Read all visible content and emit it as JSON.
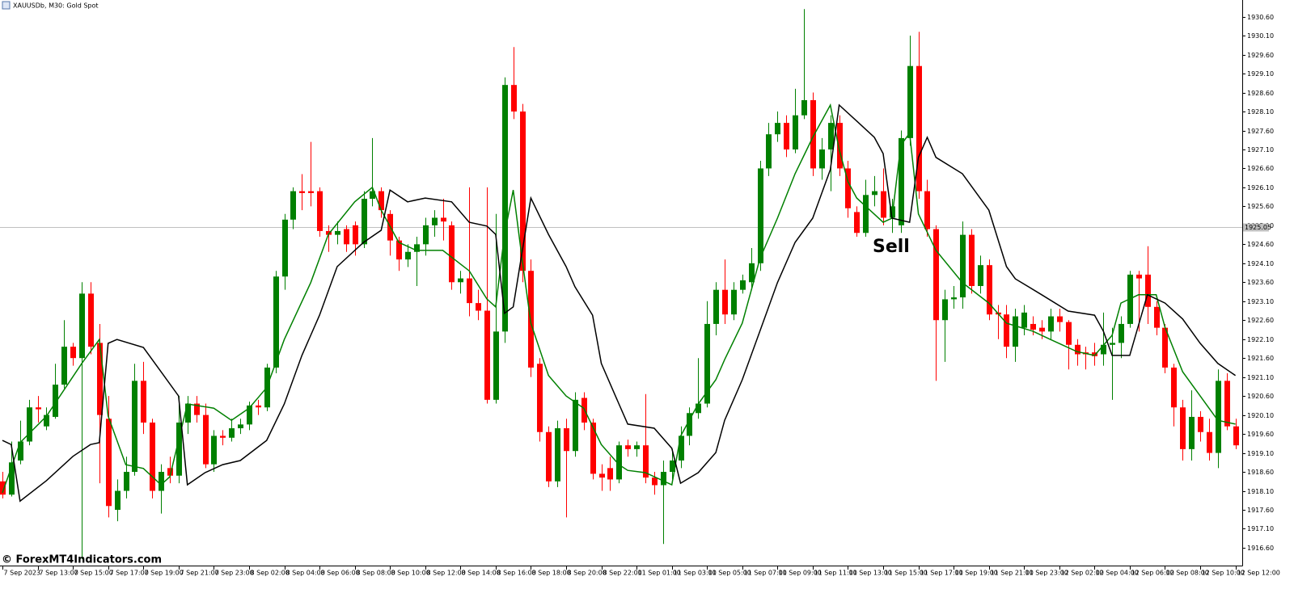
{
  "chart_data": {
    "type": "candlestick",
    "title": "XAUUSDb, M30:  Gold Spot",
    "annotation": "Sell",
    "watermark": "© ForexMT4Indicators.com",
    "up_color": "#008000",
    "down_color": "#ff0000",
    "xlim": [
      -0.28,
      140.68
    ],
    "ylim": [
      1916.13,
      1931.04
    ],
    "price_line": {
      "value": 1925.05,
      "label": "1925.05"
    },
    "open": [
      1918.35,
      1918.0,
      1918.9,
      1919.4,
      1920.3,
      1919.8,
      1920.05,
      1920.9,
      1921.9,
      1921.6,
      1923.3,
      1922.0,
      1920.0,
      1917.6,
      1918.1,
      1918.6,
      1921.0,
      1919.9,
      1918.1,
      1918.7,
      1918.5,
      1919.9,
      1920.4,
      1920.1,
      1918.8,
      1919.55,
      1919.5,
      1919.75,
      1919.85,
      1920.35,
      1920.3,
      1921.35,
      1923.75,
      1925.25,
      1926.0,
      1926.0,
      1926.0,
      1924.95,
      1924.85,
      1925.0,
      1925.1,
      1924.6,
      1925.8,
      1926.0,
      1925.4,
      1924.7,
      1924.2,
      1924.4,
      1924.6,
      1925.1,
      1925.3,
      1925.1,
      1923.6,
      1923.7,
      1923.05,
      1922.85,
      1920.5,
      1922.3,
      1928.8,
      1928.1,
      1923.9,
      1921.45,
      1919.65,
      1918.35,
      1919.75,
      1919.15,
      1920.55,
      1919.9,
      1918.55,
      1918.7,
      1918.4,
      1919.3,
      1919.2,
      1919.3,
      1918.45,
      1918.25,
      1918.6,
      1918.9,
      1919.55,
      1920.15,
      1920.4,
      1922.5,
      1923.4,
      1922.75,
      1923.4,
      1923.6,
      1924.1,
      1926.6,
      1927.5,
      1927.8,
      1927.1,
      1928.0,
      1928.4,
      1926.6,
      1927.1,
      1927.8,
      1926.6,
      1925.45,
      1924.9,
      1925.9,
      1926.0,
      1925.3,
      1925.1,
      1927.4,
      1929.3,
      1926.0,
      1925.0,
      1922.6,
      1923.15,
      1923.2,
      1924.85,
      1923.5,
      1924.05,
      1922.8,
      1922.75,
      1921.9,
      1922.4,
      1922.5,
      1922.4,
      1922.3,
      1922.7,
      1922.55,
      1921.95,
      1921.75,
      1921.75,
      1921.7,
      1921.95,
      1922.0,
      1922.5,
      1923.8,
      1923.8,
      1922.95,
      1922.4,
      1921.35,
      1920.3,
      1919.2,
      1920.05,
      1919.65,
      1919.1,
      1921.0,
      1919.8
    ],
    "high": [
      1918.6,
      1919.4,
      1919.95,
      1920.5,
      1920.6,
      1920.3,
      1921.45,
      1922.6,
      1922.0,
      1923.6,
      1923.6,
      1922.5,
      1920.6,
      1918.4,
      1919.0,
      1921.45,
      1921.5,
      1920.0,
      1918.8,
      1919.0,
      1920.6,
      1920.6,
      1920.6,
      1920.4,
      1919.7,
      1919.7,
      1920.0,
      1920.0,
      1920.45,
      1920.5,
      1921.45,
      1923.9,
      1925.4,
      1926.1,
      1926.45,
      1927.3,
      1926.1,
      1925.1,
      1925.2,
      1925.1,
      1925.2,
      1926.0,
      1927.4,
      1926.1,
      1925.5,
      1924.8,
      1924.6,
      1924.8,
      1925.3,
      1925.5,
      1925.8,
      1925.2,
      1923.9,
      1926.1,
      1923.4,
      1926.1,
      1925.4,
      1929.0,
      1929.8,
      1928.3,
      1924.2,
      1921.6,
      1919.8,
      1919.95,
      1920.0,
      1920.7,
      1920.7,
      1920.0,
      1918.8,
      1919.0,
      1919.4,
      1919.45,
      1919.4,
      1920.65,
      1918.6,
      1918.9,
      1919.2,
      1919.8,
      1920.3,
      1921.6,
      1923.1,
      1923.6,
      1924.2,
      1923.6,
      1923.8,
      1924.5,
      1926.8,
      1927.8,
      1928.1,
      1928.0,
      1928.7,
      1930.8,
      1928.6,
      1927.4,
      1928.0,
      1928.0,
      1926.8,
      1925.6,
      1926.3,
      1926.4,
      1926.6,
      1925.8,
      1927.6,
      1930.1,
      1930.2,
      1926.3,
      1925.1,
      1923.4,
      1923.5,
      1925.2,
      1925.0,
      1924.3,
      1924.2,
      1923.0,
      1923.0,
      1922.9,
      1923.0,
      1922.7,
      1922.6,
      1922.9,
      1922.9,
      1922.6,
      1922.1,
      1921.9,
      1922.0,
      1922.8,
      1922.4,
      1922.7,
      1923.9,
      1923.9,
      1924.55,
      1923.1,
      1922.5,
      1921.45,
      1920.5,
      1920.75,
      1920.2,
      1920.0,
      1921.3,
      1921.2,
      1920.0
    ],
    "low": [
      1917.9,
      1917.95,
      1918.8,
      1919.3,
      1919.9,
      1919.7,
      1920.0,
      1920.8,
      1921.4,
      1916.3,
      1921.7,
      1918.3,
      1917.4,
      1917.3,
      1917.9,
      1918.5,
      1919.6,
      1917.9,
      1917.5,
      1918.3,
      1918.3,
      1919.6,
      1919.9,
      1918.7,
      1918.6,
      1919.3,
      1919.4,
      1919.6,
      1919.7,
      1920.1,
      1920.2,
      1921.2,
      1923.4,
      1925.0,
      1925.5,
      1925.6,
      1924.8,
      1924.4,
      1924.6,
      1924.4,
      1924.3,
      1924.5,
      1925.6,
      1925.3,
      1924.3,
      1923.9,
      1924.0,
      1923.5,
      1924.3,
      1924.8,
      1924.7,
      1923.4,
      1923.3,
      1922.7,
      1922.6,
      1920.4,
      1920.4,
      1922.0,
      1927.9,
      1923.6,
      1921.1,
      1919.4,
      1918.2,
      1918.2,
      1917.4,
      1919.0,
      1919.7,
      1918.4,
      1918.1,
      1918.1,
      1918.3,
      1919.0,
      1919.0,
      1918.3,
      1918.0,
      1916.7,
      1918.4,
      1918.7,
      1919.3,
      1920.0,
      1920.3,
      1922.2,
      1922.5,
      1922.6,
      1923.3,
      1923.4,
      1923.9,
      1926.4,
      1927.3,
      1926.9,
      1927.0,
      1927.9,
      1926.4,
      1926.3,
      1926.0,
      1926.4,
      1925.3,
      1924.8,
      1924.8,
      1925.6,
      1925.1,
      1924.9,
      1924.9,
      1927.2,
      1925.8,
      1924.8,
      1921.0,
      1921.5,
      1922.9,
      1922.9,
      1923.3,
      1923.3,
      1922.6,
      1922.1,
      1921.6,
      1921.5,
      1922.2,
      1922.2,
      1922.1,
      1922.1,
      1922.3,
      1921.3,
      1921.4,
      1921.3,
      1921.4,
      1921.4,
      1920.5,
      1921.6,
      1922.4,
      1922.3,
      1922.5,
      1922.2,
      1921.2,
      1919.8,
      1918.9,
      1918.9,
      1919.4,
      1918.9,
      1918.7,
      1919.7,
      1919.2
    ],
    "close": [
      1918.0,
      1918.85,
      1919.4,
      1920.3,
      1920.25,
      1920.1,
      1920.9,
      1921.9,
      1921.6,
      1923.3,
      1921.9,
      1920.1,
      1917.7,
      1918.1,
      1918.6,
      1921.0,
      1919.9,
      1918.1,
      1918.6,
      1918.5,
      1919.9,
      1920.4,
      1920.1,
      1918.8,
      1919.55,
      1919.5,
      1919.75,
      1919.85,
      1920.35,
      1920.3,
      1921.35,
      1923.75,
      1925.25,
      1926.0,
      1925.95,
      1925.95,
      1924.95,
      1924.85,
      1924.95,
      1924.6,
      1924.6,
      1925.8,
      1926.0,
      1925.5,
      1924.7,
      1924.2,
      1924.4,
      1924.6,
      1925.1,
      1925.3,
      1925.2,
      1923.6,
      1923.7,
      1923.05,
      1922.85,
      1920.5,
      1922.3,
      1928.8,
      1928.1,
      1923.9,
      1921.35,
      1919.65,
      1918.35,
      1919.75,
      1919.15,
      1920.5,
      1919.9,
      1918.55,
      1918.45,
      1918.4,
      1919.3,
      1919.2,
      1919.3,
      1918.45,
      1918.25,
      1918.6,
      1918.9,
      1919.55,
      1920.15,
      1920.4,
      1922.5,
      1923.4,
      1922.75,
      1923.4,
      1923.65,
      1924.1,
      1926.6,
      1927.5,
      1927.8,
      1927.1,
      1928.0,
      1928.4,
      1926.6,
      1927.1,
      1927.8,
      1926.6,
      1925.55,
      1924.9,
      1925.9,
      1926.0,
      1925.3,
      1925.6,
      1927.4,
      1929.3,
      1926.0,
      1925.0,
      1922.6,
      1923.15,
      1923.2,
      1924.85,
      1923.5,
      1924.05,
      1922.75,
      1922.75,
      1921.9,
      1922.7,
      1922.8,
      1922.35,
      1922.3,
      1922.7,
      1922.55,
      1921.95,
      1921.7,
      1921.7,
      1921.65,
      1921.95,
      1922.0,
      1922.5,
      1923.8,
      1923.7,
      1922.95,
      1922.4,
      1921.35,
      1920.3,
      1919.2,
      1920.05,
      1919.65,
      1919.1,
      1921.0,
      1919.8,
      1919.3
    ],
    "lines": [
      {
        "color": "#008000",
        "x": [
          0,
          2,
          5,
          9,
          11,
          12,
          14,
          16,
          18,
          19,
          21,
          24,
          26,
          28,
          30,
          32,
          35,
          37,
          40,
          42,
          43,
          45,
          47,
          50,
          53,
          55,
          56,
          57,
          58,
          59,
          60,
          62,
          64,
          66,
          68,
          70,
          71,
          73,
          76,
          77,
          79,
          81,
          82,
          84,
          86,
          88,
          90,
          92,
          94,
          95,
          96,
          97,
          100,
          101,
          102,
          103,
          104,
          106,
          109,
          112,
          114,
          117,
          119,
          122,
          124,
          126,
          127,
          129,
          131,
          132,
          134,
          136,
          138,
          140
        ],
        "values": [
          1918.05,
          1919.37,
          1920.07,
          1921.46,
          1922.09,
          1920.07,
          1918.79,
          1918.69,
          1918.26,
          1918.47,
          1920.39,
          1920.28,
          1919.96,
          1920.28,
          1920.82,
          1922.09,
          1923.59,
          1924.86,
          1925.72,
          1926.1,
          1925.5,
          1924.65,
          1924.44,
          1924.44,
          1923.9,
          1923.16,
          1922.95,
          1924.86,
          1926.03,
          1924.22,
          1922.52,
          1921.14,
          1920.6,
          1920.28,
          1919.32,
          1918.79,
          1918.64,
          1918.58,
          1918.26,
          1919.54,
          1920.39,
          1921.03,
          1921.56,
          1922.52,
          1924.22,
          1925.29,
          1926.46,
          1927.42,
          1928.27,
          1927.1,
          1926.25,
          1925.82,
          1925.18,
          1925.29,
          1927.21,
          1927.53,
          1925.4,
          1924.44,
          1923.59,
          1923.05,
          1922.52,
          1922.31,
          1922.09,
          1921.77,
          1921.67,
          1922.2,
          1923.05,
          1923.27,
          1923.27,
          1922.41,
          1921.24,
          1920.6,
          1919.96,
          1919.86
        ]
      },
      {
        "color": "#000000",
        "x": [
          0,
          1,
          2,
          5,
          8,
          10,
          11,
          12,
          13,
          16,
          18,
          20,
          21,
          23,
          25,
          27,
          30,
          32,
          34,
          36,
          38,
          41,
          43,
          44,
          46,
          48,
          51,
          53,
          55,
          56,
          57,
          58,
          60,
          62,
          64,
          65,
          67,
          68,
          70,
          71,
          74,
          76,
          77,
          79,
          81,
          82,
          84,
          86,
          88,
          90,
          92,
          93,
          94,
          95,
          97,
          99,
          100,
          101,
          103,
          104,
          105,
          106,
          109,
          112,
          114,
          115,
          118,
          121,
          124,
          125,
          126,
          128,
          130,
          132,
          134,
          136,
          138,
          140
        ],
        "values": [
          1919.43,
          1919.32,
          1917.83,
          1918.37,
          1919.01,
          1919.32,
          1919.37,
          1921.99,
          1922.09,
          1921.88,
          1921.24,
          1920.6,
          1918.26,
          1918.58,
          1918.79,
          1918.9,
          1919.43,
          1920.39,
          1921.67,
          1922.73,
          1924.01,
          1924.65,
          1924.97,
          1926.03,
          1925.72,
          1925.82,
          1925.72,
          1925.18,
          1925.08,
          1924.86,
          1922.78,
          1922.95,
          1925.82,
          1924.86,
          1924.01,
          1923.48,
          1922.73,
          1921.46,
          1920.39,
          1919.86,
          1919.75,
          1919.22,
          1918.3,
          1918.58,
          1919.11,
          1919.96,
          1921.03,
          1922.31,
          1923.59,
          1924.65,
          1925.29,
          1925.93,
          1926.57,
          1928.27,
          1927.85,
          1927.42,
          1926.99,
          1925.29,
          1925.18,
          1926.89,
          1927.42,
          1926.89,
          1926.46,
          1925.5,
          1924.01,
          1923.69,
          1923.27,
          1922.84,
          1922.73,
          1922.31,
          1921.67,
          1921.67,
          1923.27,
          1923.05,
          1922.63,
          1921.99,
          1921.46,
          1921.14
        ]
      }
    ],
    "yticks": [
      {
        "value": 1916.6,
        "label": "1916.60"
      },
      {
        "value": 1917.1,
        "label": "1917.10"
      },
      {
        "value": 1917.6,
        "label": "1917.60"
      },
      {
        "value": 1918.1,
        "label": "1918.10"
      },
      {
        "value": 1918.6,
        "label": "1918.60"
      },
      {
        "value": 1919.1,
        "label": "1919.10"
      },
      {
        "value": 1919.6,
        "label": "1919.60"
      },
      {
        "value": 1920.1,
        "label": "1920.10"
      },
      {
        "value": 1920.6,
        "label": "1920.60"
      },
      {
        "value": 1921.1,
        "label": "1921.10"
      },
      {
        "value": 1921.6,
        "label": "1921.60"
      },
      {
        "value": 1922.1,
        "label": "1922.10"
      },
      {
        "value": 1922.6,
        "label": "1922.60"
      },
      {
        "value": 1923.1,
        "label": "1923.10"
      },
      {
        "value": 1923.6,
        "label": "1923.60"
      },
      {
        "value": 1924.1,
        "label": "1924.10"
      },
      {
        "value": 1924.6,
        "label": "1924.60"
      },
      {
        "value": 1925.1,
        "label": "1925.10"
      },
      {
        "value": 1925.6,
        "label": "1925.60"
      },
      {
        "value": 1926.1,
        "label": "1926.10"
      },
      {
        "value": 1926.6,
        "label": "1926.60"
      },
      {
        "value": 1927.1,
        "label": "1927.10"
      },
      {
        "value": 1927.6,
        "label": "1927.60"
      },
      {
        "value": 1928.1,
        "label": "1928.10"
      },
      {
        "value": 1928.6,
        "label": "1928.60"
      },
      {
        "value": 1929.1,
        "label": "1929.10"
      },
      {
        "value": 1929.6,
        "label": "1929.60"
      },
      {
        "value": 1930.1,
        "label": "1930.10"
      },
      {
        "value": 1930.6,
        "label": "1930.60"
      }
    ],
    "xticks": [
      {
        "value": 0,
        "label": "7 Sep 2023"
      },
      {
        "value": 4,
        "label": "7 Sep 13:00"
      },
      {
        "value": 8,
        "label": "7 Sep 15:00"
      },
      {
        "value": 12,
        "label": "7 Sep 17:00"
      },
      {
        "value": 16,
        "label": "7 Sep 19:00"
      },
      {
        "value": 20,
        "label": "7 Sep 21:00"
      },
      {
        "value": 24,
        "label": "7 Sep 23:00"
      },
      {
        "value": 28,
        "label": "8 Sep 02:00"
      },
      {
        "value": 32,
        "label": "8 Sep 04:00"
      },
      {
        "value": 36,
        "label": "8 Sep 06:00"
      },
      {
        "value": 40,
        "label": "8 Sep 08:00"
      },
      {
        "value": 44,
        "label": "8 Sep 10:00"
      },
      {
        "value": 48,
        "label": "8 Sep 12:00"
      },
      {
        "value": 52,
        "label": "8 Sep 14:00"
      },
      {
        "value": 56,
        "label": "8 Sep 16:00"
      },
      {
        "value": 60,
        "label": "8 Sep 18:00"
      },
      {
        "value": 64,
        "label": "8 Sep 20:00"
      },
      {
        "value": 68,
        "label": "8 Sep 22:00"
      },
      {
        "value": 72,
        "label": "11 Sep 01:00"
      },
      {
        "value": 76,
        "label": "11 Sep 03:00"
      },
      {
        "value": 80,
        "label": "11 Sep 05:00"
      },
      {
        "value": 84,
        "label": "11 Sep 07:00"
      },
      {
        "value": 88,
        "label": "11 Sep 09:00"
      },
      {
        "value": 92,
        "label": "11 Sep 11:00"
      },
      {
        "value": 96,
        "label": "11 Sep 13:00"
      },
      {
        "value": 100,
        "label": "11 Sep 15:00"
      },
      {
        "value": 104,
        "label": "11 Sep 17:00"
      },
      {
        "value": 108,
        "label": "11 Sep 19:00"
      },
      {
        "value": 112,
        "label": "11 Sep 21:00"
      },
      {
        "value": 116,
        "label": "11 Sep 23:00"
      },
      {
        "value": 120,
        "label": "12 Sep 02:00"
      },
      {
        "value": 124,
        "label": "12 Sep 04:00"
      },
      {
        "value": 128,
        "label": "12 Sep 06:00"
      },
      {
        "value": 132,
        "label": "12 Sep 08:00"
      },
      {
        "value": 136,
        "label": "12 Sep 10:00"
      },
      {
        "value": 140,
        "label": "12 Sep 12:00"
      }
    ]
  }
}
